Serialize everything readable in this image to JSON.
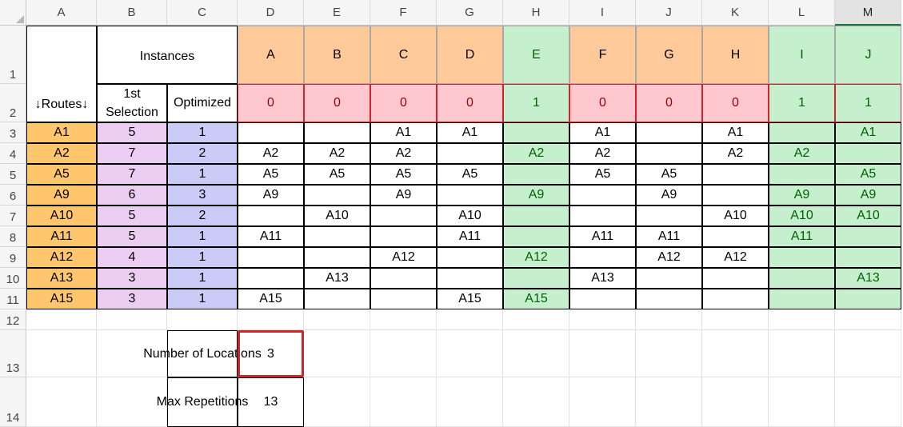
{
  "columns": [
    "A",
    "B",
    "C",
    "D",
    "E",
    "F",
    "G",
    "H",
    "I",
    "J",
    "K",
    "L",
    "M"
  ],
  "rows": [
    "1",
    "2",
    "3",
    "4",
    "5",
    "6",
    "7",
    "8",
    "9",
    "10",
    "11",
    "12",
    "13",
    "14"
  ],
  "selected_column": "M",
  "colors": {
    "orange": "#ffc999",
    "route_orange": "#ffc66e",
    "pink": "#ffc7ce",
    "pink_text": "#9c0006",
    "green": "#c6efce",
    "green_text": "#006100",
    "purple": "#ebcef1",
    "lavender": "#cbcbf8",
    "highlight_border": "#d2232a"
  },
  "header": {
    "routes_label": "↓Routes↓",
    "instances_label": "Instances",
    "first_selection_label": "1st\nSelection",
    "optimized_label": "Optimized"
  },
  "instances": [
    {
      "name": "A",
      "flag": "0",
      "good": false
    },
    {
      "name": "B",
      "flag": "0",
      "good": false
    },
    {
      "name": "C",
      "flag": "0",
      "good": false
    },
    {
      "name": "D",
      "flag": "0",
      "good": false
    },
    {
      "name": "E",
      "flag": "1",
      "good": true
    },
    {
      "name": "F",
      "flag": "0",
      "good": false
    },
    {
      "name": "G",
      "flag": "0",
      "good": false
    },
    {
      "name": "H",
      "flag": "0",
      "good": false
    },
    {
      "name": "I",
      "flag": "1",
      "good": true
    },
    {
      "name": "J",
      "flag": "1",
      "good": true
    }
  ],
  "routes": [
    {
      "route": "A1",
      "first": "5",
      "opt": "1",
      "cells": [
        "",
        "",
        "A1",
        "A1",
        "",
        "A1",
        "",
        "A1",
        "",
        "A1"
      ]
    },
    {
      "route": "A2",
      "first": "7",
      "opt": "2",
      "cells": [
        "A2",
        "A2",
        "A2",
        "",
        "A2",
        "A2",
        "",
        "A2",
        "A2",
        ""
      ]
    },
    {
      "route": "A5",
      "first": "7",
      "opt": "1",
      "cells": [
        "A5",
        "A5",
        "A5",
        "A5",
        "",
        "A5",
        "A5",
        "",
        "",
        "A5"
      ]
    },
    {
      "route": "A9",
      "first": "6",
      "opt": "3",
      "cells": [
        "A9",
        "",
        "A9",
        "",
        "A9",
        "",
        "A9",
        "",
        "A9",
        "A9"
      ]
    },
    {
      "route": "A10",
      "first": "5",
      "opt": "2",
      "cells": [
        "",
        "A10",
        "",
        "A10",
        "",
        "",
        "",
        "A10",
        "A10",
        "A10"
      ]
    },
    {
      "route": "A11",
      "first": "5",
      "opt": "1",
      "cells": [
        "A11",
        "",
        "",
        "A11",
        "",
        "A11",
        "A11",
        "",
        "A11",
        ""
      ]
    },
    {
      "route": "A12",
      "first": "4",
      "opt": "1",
      "cells": [
        "",
        "",
        "A12",
        "",
        "A12",
        "",
        "A12",
        "A12",
        "",
        ""
      ]
    },
    {
      "route": "A13",
      "first": "3",
      "opt": "1",
      "cells": [
        "",
        "A13",
        "",
        "",
        "",
        "A13",
        "",
        "",
        "",
        "A13"
      ]
    },
    {
      "route": "A15",
      "first": "3",
      "opt": "1",
      "cells": [
        "A15",
        "",
        "",
        "A15",
        "A15",
        "",
        "",
        "",
        "",
        ""
      ]
    }
  ],
  "summary": {
    "locations_label": "Number of Locations",
    "locations_value": "3",
    "repetitions_label": "Max Repetitions",
    "repetitions_value": "13"
  }
}
